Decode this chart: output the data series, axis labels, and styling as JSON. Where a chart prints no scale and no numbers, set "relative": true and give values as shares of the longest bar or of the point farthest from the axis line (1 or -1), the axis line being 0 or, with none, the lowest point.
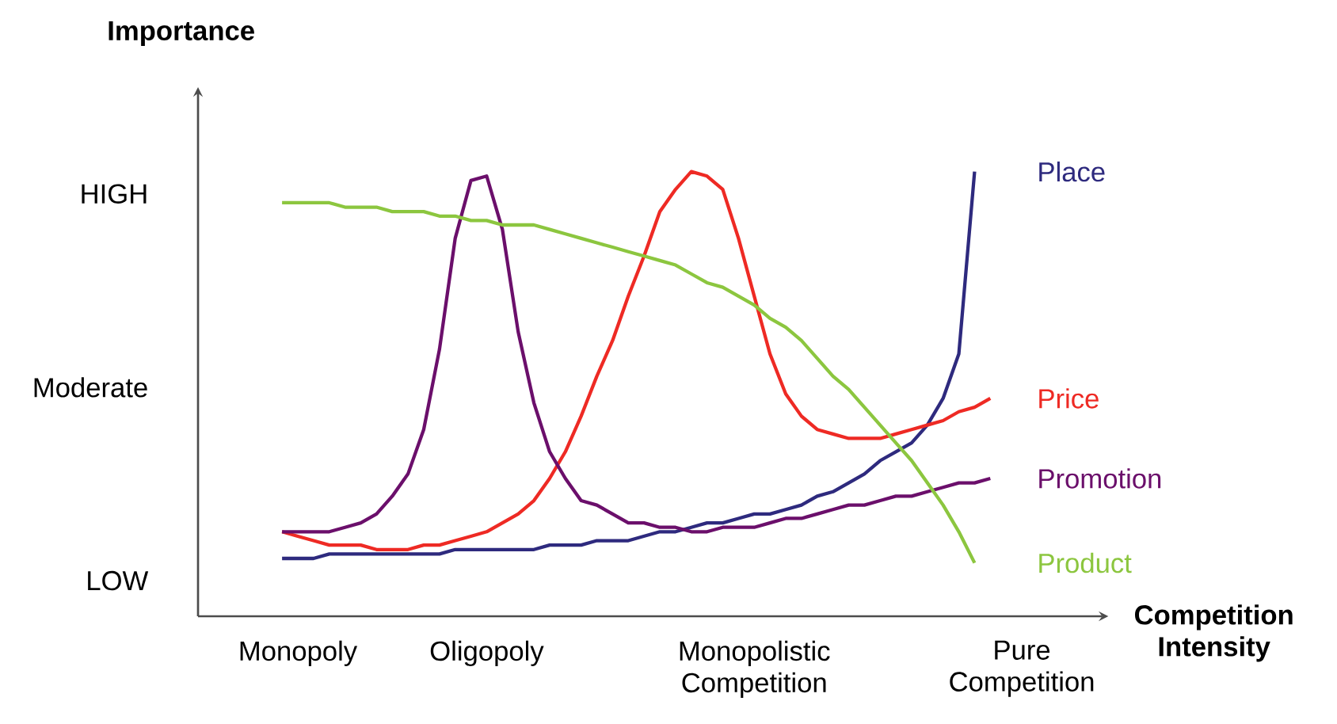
{
  "chart_data": {
    "type": "line",
    "relative": true,
    "xlabel": "Competition Intensity",
    "ylabel": "Importance",
    "categories": [
      null,
      "Monopoly",
      null,
      null,
      null,
      null,
      null,
      null,
      null,
      null,
      null,
      null,
      null,
      "Oligopoly",
      null,
      null,
      null,
      null,
      null,
      null,
      null,
      null,
      null,
      null,
      null,
      null,
      null,
      null,
      null,
      null,
      "Monopolistic Competition",
      null,
      null,
      null,
      null,
      null,
      null,
      null,
      null,
      null,
      null,
      null,
      null,
      null,
      null,
      null,
      null,
      "Pure Competition"
    ],
    "annotations": [
      "LOW",
      "Moderate",
      "HIGH"
    ],
    "series": [
      {
        "name": "Place",
        "color": "#2e2a7e",
        "values": [
          0.13,
          0.13,
          0.13,
          0.14,
          0.14,
          0.14,
          0.14,
          0.14,
          0.14,
          0.14,
          0.14,
          0.15,
          0.15,
          0.15,
          0.15,
          0.15,
          0.15,
          0.16,
          0.16,
          0.16,
          0.17,
          0.17,
          0.17,
          0.18,
          0.19,
          0.19,
          0.2,
          0.21,
          0.21,
          0.22,
          0.23,
          0.23,
          0.24,
          0.25,
          0.27,
          0.28,
          0.3,
          0.32,
          0.35,
          0.37,
          0.39,
          0.43,
          0.49,
          0.59,
          1,
          null,
          null,
          null
        ]
      },
      {
        "name": "Price",
        "color": "#ee2a24",
        "values": [
          0.19,
          0.18,
          0.17,
          0.16,
          0.16,
          0.16,
          0.15,
          0.15,
          0.15,
          0.16,
          0.16,
          0.17,
          0.18,
          0.19,
          0.21,
          0.23,
          0.26,
          0.31,
          0.37,
          0.45,
          0.54,
          0.62,
          0.72,
          0.81,
          0.91,
          0.96,
          1,
          0.99,
          0.96,
          0.85,
          0.72,
          0.59,
          0.5,
          0.45,
          0.42,
          0.41,
          0.4,
          0.4,
          0.4,
          0.41,
          0.42,
          0.43,
          0.44,
          0.46,
          0.47,
          0.49,
          null,
          null
        ]
      },
      {
        "name": "Promotion",
        "color": "#6b0f6b",
        "values": [
          0.19,
          0.19,
          0.19,
          0.19,
          0.2,
          0.21,
          0.23,
          0.27,
          0.32,
          0.42,
          0.6,
          0.85,
          0.98,
          0.99,
          0.87,
          0.64,
          0.48,
          0.37,
          0.31,
          0.26,
          0.25,
          0.23,
          0.21,
          0.21,
          0.2,
          0.2,
          0.19,
          0.19,
          0.2,
          0.2,
          0.2,
          0.21,
          0.22,
          0.22,
          0.23,
          0.24,
          0.25,
          0.25,
          0.26,
          0.27,
          0.27,
          0.28,
          0.29,
          0.3,
          0.3,
          0.31,
          null,
          null
        ]
      },
      {
        "name": "Product",
        "color": "#8cc63f",
        "values": [
          0.93,
          0.93,
          0.93,
          0.93,
          0.92,
          0.92,
          0.92,
          0.91,
          0.91,
          0.91,
          0.9,
          0.9,
          0.89,
          0.89,
          0.88,
          0.88,
          0.88,
          0.87,
          0.86,
          0.85,
          0.84,
          0.83,
          0.82,
          0.81,
          0.8,
          0.79,
          0.77,
          0.75,
          0.74,
          0.72,
          0.7,
          0.67,
          0.65,
          0.62,
          0.58,
          0.54,
          0.51,
          0.47,
          0.43,
          0.39,
          0.35,
          0.3,
          0.25,
          0.19,
          0.12,
          null,
          null,
          null
        ]
      }
    ]
  }
}
